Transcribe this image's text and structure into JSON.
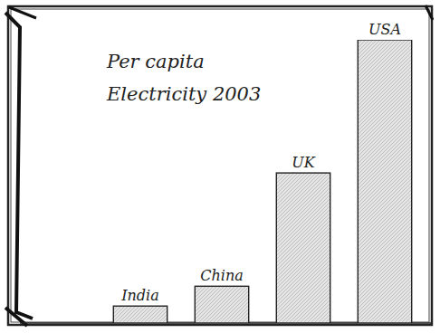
{
  "chart_data": {
    "type": "bar",
    "title": "Per capita Electricity 2003",
    "categories": [
      "India",
      "China",
      "UK",
      "USA"
    ],
    "values": [
      6,
      13,
      53,
      100
    ],
    "color": "#e4e4e4",
    "ylim": [
      0,
      100
    ],
    "tick_labels": false,
    "grid": false
  }
}
